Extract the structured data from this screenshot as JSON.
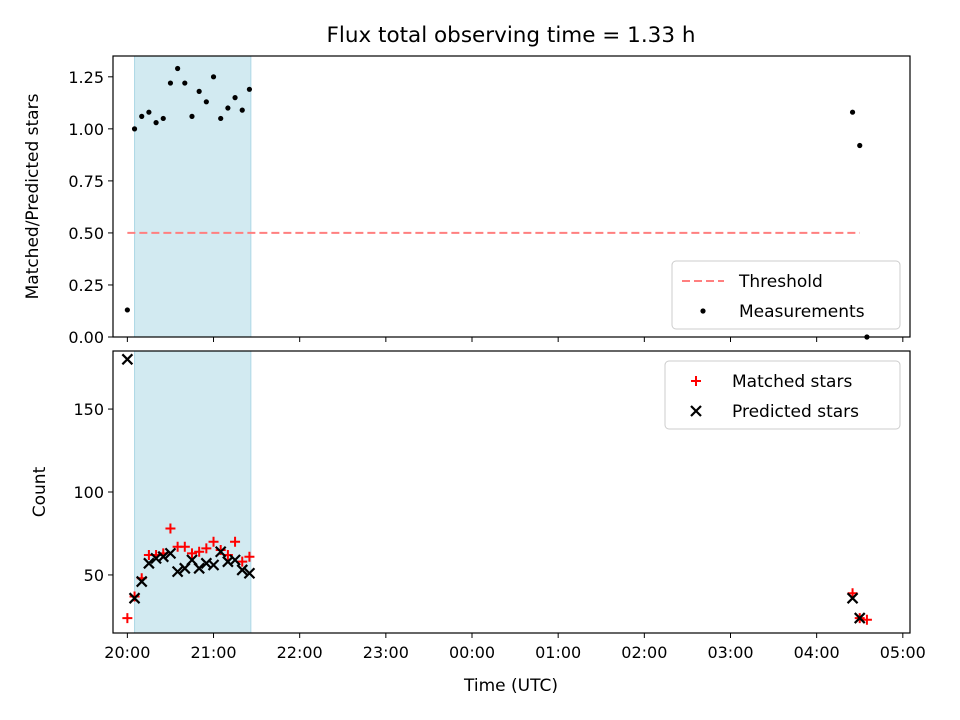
{
  "figure": {
    "title": "Flux total observing time = 1.33 h",
    "xlabel": "Time (UTC)",
    "x_ticks": [
      "20:00",
      "21:00",
      "22:00",
      "23:00",
      "00:00",
      "01:00",
      "02:00",
      "03:00",
      "04:00",
      "05:00"
    ],
    "shaded_interval": [
      "20:05",
      "21:26"
    ],
    "shade_color": "#add8e6"
  },
  "chart_data": [
    {
      "type": "scatter",
      "title": "Flux total observing time = 1.33 h",
      "ylabel": "Matched/Predicted stars",
      "ylim": [
        0,
        1.35
      ],
      "y_ticks": [
        "0.00",
        "0.25",
        "0.50",
        "0.75",
        "1.00",
        "1.25"
      ],
      "legend_location": "lower right",
      "series": [
        {
          "name": "Threshold",
          "kind": "dashed-line",
          "color": "#ff7f7f",
          "x": [
            "20:00",
            "04:30"
          ],
          "y": [
            0.5,
            0.5
          ]
        },
        {
          "name": "Measurements",
          "kind": "dot",
          "color": "#000000",
          "x": [
            "20:00",
            "20:05",
            "20:10",
            "20:15",
            "20:20",
            "20:25",
            "20:30",
            "20:35",
            "20:40",
            "20:45",
            "20:50",
            "20:55",
            "21:00",
            "21:05",
            "21:10",
            "21:15",
            "21:20",
            "21:25",
            "04:25",
            "04:30",
            "04:35"
          ],
          "y": [
            0.13,
            1.0,
            1.06,
            1.08,
            1.03,
            1.05,
            1.22,
            1.29,
            1.22,
            1.06,
            1.18,
            1.13,
            1.25,
            1.05,
            1.1,
            1.15,
            1.09,
            1.19,
            1.08,
            0.92,
            0.0
          ]
        }
      ]
    },
    {
      "type": "scatter",
      "ylabel": "Count",
      "ylim": [
        15,
        185
      ],
      "y_ticks": [
        "50",
        "100",
        "150"
      ],
      "legend_location": "upper right",
      "series": [
        {
          "name": "Matched stars",
          "kind": "plus",
          "color": "#ff0000",
          "x": [
            "20:00",
            "20:05",
            "20:10",
            "20:15",
            "20:20",
            "20:25",
            "20:30",
            "20:35",
            "20:40",
            "20:45",
            "20:50",
            "20:55",
            "21:00",
            "21:05",
            "21:10",
            "21:15",
            "21:20",
            "21:25",
            "04:25",
            "04:30",
            "04:35"
          ],
          "y": [
            24,
            37,
            48,
            62,
            62,
            63,
            78,
            67,
            67,
            63,
            64,
            66,
            70,
            65,
            62,
            70,
            58,
            61,
            39,
            24,
            23
          ]
        },
        {
          "name": "Predicted stars",
          "kind": "x",
          "color": "#000000",
          "x": [
            "20:00",
            "20:05",
            "20:10",
            "20:15",
            "20:20",
            "20:25",
            "20:30",
            "20:35",
            "20:40",
            "20:45",
            "20:50",
            "20:55",
            "21:00",
            "21:05",
            "21:10",
            "21:15",
            "21:20",
            "21:25",
            "04:25",
            "04:30"
          ],
          "y": [
            180,
            36,
            46,
            57,
            60,
            61,
            63,
            52,
            54,
            59,
            54,
            57,
            56,
            64,
            58,
            59,
            53,
            51,
            36,
            24
          ]
        }
      ]
    }
  ]
}
